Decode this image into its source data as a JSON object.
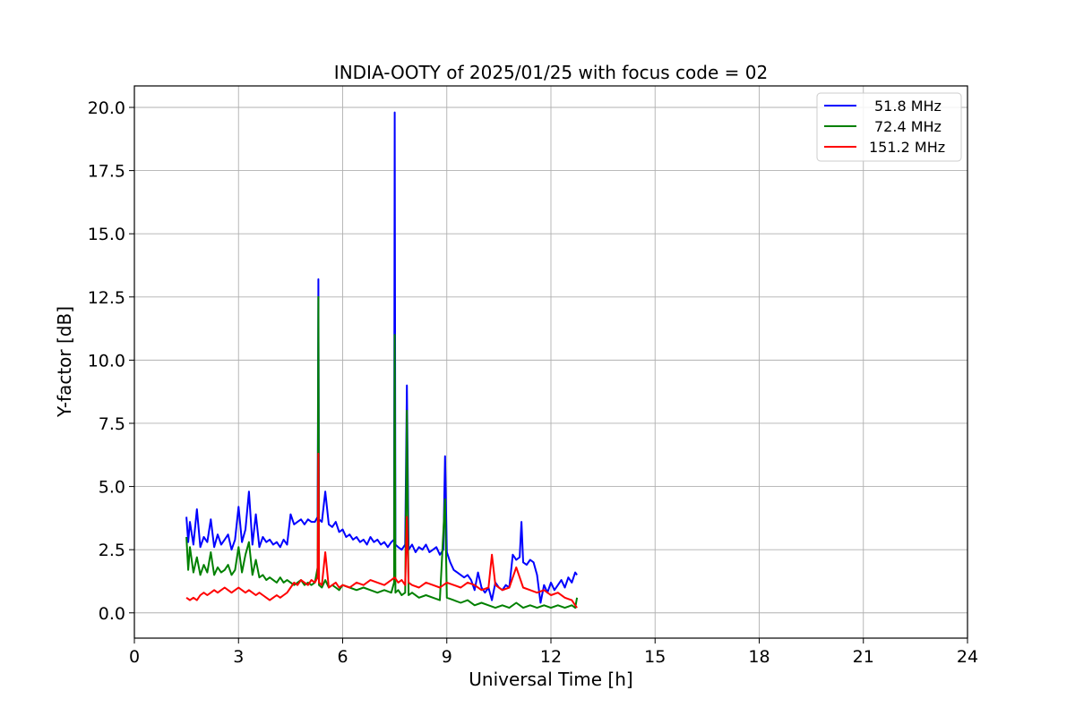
{
  "chart_data": {
    "type": "line",
    "title": "INDIA-OOTY of 2025/01/25 with focus code = 02",
    "xlabel": "Universal Time [h]",
    "ylabel": "Y-factor [dB]",
    "xlim": [
      0,
      24
    ],
    "ylim": [
      -1.0,
      20.85
    ],
    "xticks": [
      0,
      3,
      6,
      9,
      12,
      15,
      18,
      21,
      24
    ],
    "xtick_labels": [
      "0",
      "3",
      "6",
      "9",
      "12",
      "15",
      "18",
      "21",
      "24"
    ],
    "yticks": [
      0,
      2.5,
      5,
      7.5,
      10,
      12.5,
      15,
      17.5,
      20
    ],
    "ytick_labels": [
      "0.0",
      "2.5",
      "5.0",
      "7.5",
      "10.0",
      "12.5",
      "15.0",
      "17.5",
      "20.0"
    ],
    "grid": true,
    "legend_position": "top-right",
    "series": [
      {
        "name": "51.8 MHz",
        "color": "#0000ff",
        "x": [
          1.5,
          1.55,
          1.6,
          1.7,
          1.8,
          1.9,
          2.0,
          2.1,
          2.2,
          2.3,
          2.4,
          2.5,
          2.6,
          2.7,
          2.8,
          2.9,
          3.0,
          3.1,
          3.2,
          3.3,
          3.4,
          3.5,
          3.6,
          3.7,
          3.8,
          3.9,
          4.0,
          4.1,
          4.2,
          4.3,
          4.4,
          4.5,
          4.6,
          4.7,
          4.8,
          4.9,
          5.0,
          5.1,
          5.2,
          5.28,
          5.3,
          5.32,
          5.4,
          5.5,
          5.6,
          5.7,
          5.8,
          5.9,
          6.0,
          6.1,
          6.2,
          6.3,
          6.4,
          6.5,
          6.6,
          6.7,
          6.8,
          6.9,
          7.0,
          7.1,
          7.2,
          7.3,
          7.4,
          7.48,
          7.5,
          7.52,
          7.6,
          7.7,
          7.8,
          7.85,
          7.9,
          8.0,
          8.1,
          8.2,
          8.3,
          8.4,
          8.5,
          8.6,
          8.7,
          8.8,
          8.9,
          8.95,
          9.0,
          9.1,
          9.2,
          9.3,
          9.4,
          9.5,
          9.6,
          9.7,
          9.8,
          9.9,
          10.0,
          10.1,
          10.2,
          10.3,
          10.4,
          10.5,
          10.6,
          10.7,
          10.8,
          10.9,
          11.0,
          11.1,
          11.15,
          11.2,
          11.3,
          11.4,
          11.5,
          11.6,
          11.7,
          11.8,
          11.9,
          12.0,
          12.1,
          12.2,
          12.3,
          12.4,
          12.5,
          12.6,
          12.7,
          12.75
        ],
        "y": [
          3.8,
          2.8,
          3.6,
          2.7,
          4.1,
          2.6,
          3.0,
          2.8,
          3.7,
          2.6,
          3.1,
          2.7,
          2.9,
          3.1,
          2.5,
          2.9,
          4.2,
          2.8,
          3.3,
          4.8,
          2.7,
          3.9,
          2.6,
          3.0,
          2.8,
          2.9,
          2.7,
          2.8,
          2.6,
          2.9,
          2.7,
          3.9,
          3.5,
          3.6,
          3.7,
          3.5,
          3.7,
          3.6,
          3.6,
          3.8,
          13.2,
          3.7,
          3.6,
          4.8,
          3.5,
          3.4,
          3.6,
          3.2,
          3.3,
          3.0,
          3.1,
          2.9,
          3.0,
          2.8,
          2.9,
          2.7,
          3.0,
          2.8,
          2.9,
          2.7,
          2.8,
          2.6,
          2.8,
          2.9,
          19.8,
          2.7,
          2.6,
          2.5,
          2.7,
          9.0,
          2.5,
          2.7,
          2.4,
          2.6,
          2.5,
          2.7,
          2.4,
          2.5,
          2.6,
          2.3,
          2.5,
          6.2,
          2.4,
          2.0,
          1.7,
          1.6,
          1.5,
          1.4,
          1.5,
          1.3,
          0.9,
          1.6,
          1.0,
          0.8,
          1.0,
          0.5,
          1.2,
          1.0,
          0.9,
          1.1,
          1.0,
          2.3,
          2.1,
          2.2,
          3.6,
          2.0,
          1.9,
          2.1,
          2.0,
          1.5,
          0.4,
          1.1,
          0.8,
          1.2,
          0.9,
          1.1,
          1.3,
          1.0,
          1.4,
          1.2,
          1.6,
          1.5
        ]
      },
      {
        "name": "72.4 MHz",
        "color": "#008000",
        "x": [
          1.5,
          1.55,
          1.6,
          1.7,
          1.8,
          1.9,
          2.0,
          2.1,
          2.2,
          2.3,
          2.4,
          2.5,
          2.6,
          2.7,
          2.8,
          2.9,
          3.0,
          3.1,
          3.2,
          3.3,
          3.4,
          3.5,
          3.6,
          3.7,
          3.8,
          3.9,
          4.0,
          4.1,
          4.2,
          4.3,
          4.4,
          4.5,
          4.6,
          4.7,
          4.8,
          4.9,
          5.0,
          5.1,
          5.2,
          5.28,
          5.3,
          5.32,
          5.4,
          5.5,
          5.6,
          5.7,
          5.8,
          5.9,
          6.0,
          6.2,
          6.4,
          6.6,
          6.8,
          7.0,
          7.2,
          7.4,
          7.48,
          7.5,
          7.52,
          7.6,
          7.7,
          7.8,
          7.85,
          7.9,
          8.0,
          8.2,
          8.4,
          8.6,
          8.8,
          8.95,
          9.0,
          9.2,
          9.4,
          9.6,
          9.8,
          10.0,
          10.2,
          10.4,
          10.6,
          10.8,
          11.0,
          11.2,
          11.4,
          11.6,
          11.8,
          12.0,
          12.2,
          12.4,
          12.6,
          12.7,
          12.75
        ],
        "y": [
          3.0,
          1.7,
          2.6,
          1.6,
          2.2,
          1.5,
          1.9,
          1.6,
          2.4,
          1.5,
          1.8,
          1.6,
          1.7,
          1.9,
          1.5,
          1.7,
          2.6,
          1.6,
          2.3,
          2.8,
          1.5,
          2.1,
          1.4,
          1.5,
          1.3,
          1.4,
          1.3,
          1.2,
          1.4,
          1.2,
          1.3,
          1.2,
          1.1,
          1.2,
          1.3,
          1.1,
          1.2,
          1.1,
          1.2,
          1.8,
          12.5,
          1.1,
          1.0,
          1.3,
          1.0,
          1.1,
          1.0,
          0.9,
          1.1,
          1.0,
          0.9,
          1.0,
          0.9,
          0.8,
          0.9,
          0.8,
          1.2,
          11.0,
          0.8,
          0.9,
          0.7,
          0.8,
          8.0,
          0.7,
          0.8,
          0.6,
          0.7,
          0.6,
          0.5,
          4.5,
          0.6,
          0.5,
          0.4,
          0.5,
          0.3,
          0.4,
          0.3,
          0.2,
          0.3,
          0.2,
          0.4,
          0.2,
          0.3,
          0.2,
          0.3,
          0.2,
          0.3,
          0.2,
          0.3,
          0.2,
          0.6
        ]
      },
      {
        "name": "151.2 MHz",
        "color": "#ff0000",
        "x": [
          1.5,
          1.6,
          1.7,
          1.8,
          1.9,
          2.0,
          2.1,
          2.2,
          2.3,
          2.4,
          2.5,
          2.6,
          2.7,
          2.8,
          2.9,
          3.0,
          3.1,
          3.2,
          3.3,
          3.4,
          3.5,
          3.6,
          3.7,
          3.8,
          3.9,
          4.0,
          4.1,
          4.2,
          4.3,
          4.4,
          4.5,
          4.6,
          4.7,
          4.8,
          4.9,
          5.0,
          5.1,
          5.2,
          5.28,
          5.3,
          5.32,
          5.4,
          5.5,
          5.6,
          5.7,
          5.8,
          5.9,
          6.0,
          6.2,
          6.4,
          6.6,
          6.8,
          7.0,
          7.2,
          7.4,
          7.5,
          7.6,
          7.7,
          7.8,
          7.85,
          7.9,
          8.0,
          8.2,
          8.4,
          8.6,
          8.8,
          9.0,
          9.2,
          9.4,
          9.6,
          9.8,
          10.0,
          10.2,
          10.3,
          10.4,
          10.6,
          10.8,
          11.0,
          11.2,
          11.4,
          11.6,
          11.8,
          12.0,
          12.2,
          12.4,
          12.6,
          12.7,
          12.75
        ],
        "y": [
          0.6,
          0.5,
          0.6,
          0.5,
          0.7,
          0.8,
          0.7,
          0.8,
          0.9,
          0.8,
          0.9,
          1.0,
          0.9,
          0.8,
          0.9,
          1.0,
          0.9,
          0.8,
          0.9,
          0.8,
          0.7,
          0.8,
          0.7,
          0.6,
          0.5,
          0.6,
          0.7,
          0.6,
          0.7,
          0.8,
          1.0,
          1.2,
          1.1,
          1.3,
          1.2,
          1.1,
          1.3,
          1.2,
          1.4,
          6.3,
          1.2,
          1.1,
          2.4,
          1.0,
          1.1,
          1.2,
          1.0,
          1.1,
          1.0,
          1.2,
          1.1,
          1.3,
          1.2,
          1.1,
          1.3,
          1.4,
          1.2,
          1.3,
          1.1,
          3.8,
          1.2,
          1.1,
          1.0,
          1.2,
          1.1,
          1.0,
          1.2,
          1.1,
          1.0,
          1.2,
          1.1,
          0.9,
          1.0,
          2.3,
          1.1,
          0.9,
          1.0,
          1.8,
          1.0,
          0.9,
          0.8,
          0.9,
          0.7,
          0.8,
          0.6,
          0.5,
          0.3,
          0.2
        ]
      }
    ]
  }
}
